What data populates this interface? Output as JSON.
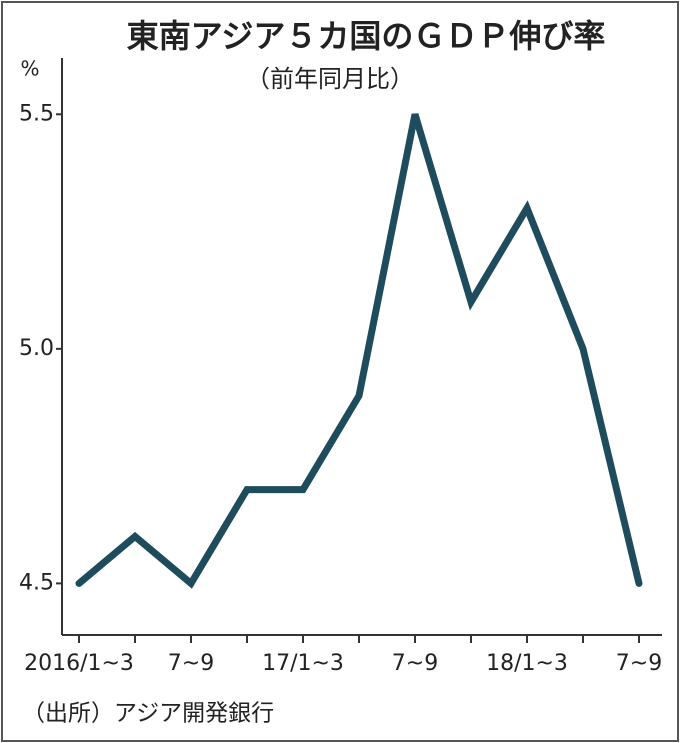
{
  "chart_data": {
    "type": "line",
    "title": "東南アジア５カ国のＧＤＰ伸び率",
    "subtitle": "（前年同月比）",
    "y_label": "%",
    "source": "（出所）アジア開発銀行",
    "categories": [
      "2016/1~3",
      null,
      "7~9",
      null,
      "17/1~3",
      null,
      "7~9",
      null,
      "18/1~3",
      null,
      "7~9"
    ],
    "series": [
      {
        "color": "#1f4c5c",
        "values": [
          4.5,
          4.6,
          4.5,
          4.7,
          4.7,
          4.9,
          5.5,
          5.1,
          5.3,
          5.0,
          4.5
        ]
      }
    ],
    "ylim": [
      4.39,
      5.62
    ],
    "yticks": [
      4.5,
      {
        "value": 5,
        "label": "5.0"
      },
      5.5
    ],
    "grid": false
  }
}
